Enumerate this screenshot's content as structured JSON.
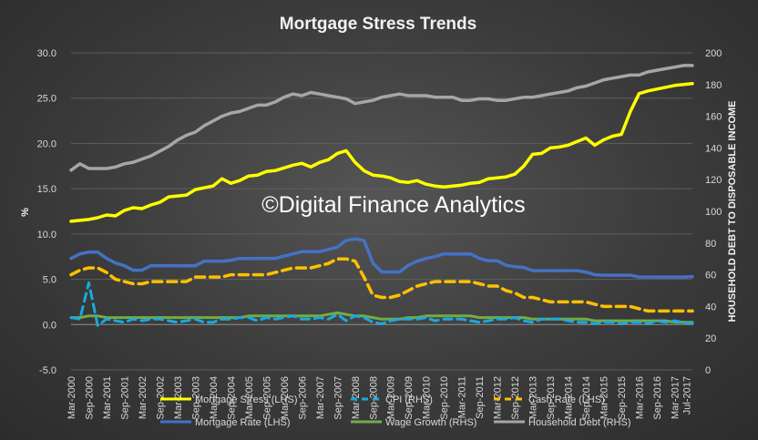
{
  "chart_data": {
    "type": "line",
    "title": "Mortgage Stress Trends",
    "ylabel_left": "%",
    "ylabel_right": "HOUSEHOLD DEBT TO DISPOSABLE INCOME",
    "ylim_left": [
      -5,
      30
    ],
    "ylim_right": [
      0,
      200
    ],
    "yticks_left": [
      "-5.0",
      "0.0",
      "5.0",
      "10.0",
      "15.0",
      "20.0",
      "25.0",
      "30.0"
    ],
    "yticks_right": [
      "0",
      "20",
      "40",
      "60",
      "80",
      "100",
      "120",
      "140",
      "160",
      "180",
      "200"
    ],
    "grid": true,
    "legend_position": "bottom",
    "watermark": "©Digital Finance Analytics",
    "x_tick_labels": [
      "Mar-2000",
      "Sep-2000",
      "Mar-2001",
      "Sep-2001",
      "Mar-2002",
      "Sep-2002",
      "Mar-2003",
      "Sep-2003",
      "Mar-2004",
      "Sep-2004",
      "Mar-2005",
      "Sep-2005",
      "Mar-2006",
      "Sep-2006",
      "Mar-2007",
      "Sep-2007",
      "Mar-2008",
      "Sep-2008",
      "Mar-2009",
      "Sep-2009",
      "Mar-2010",
      "Sep-2010",
      "Mar-2011",
      "Sep-2011",
      "Mar-2012",
      "Sep-2012",
      "Mar-2013",
      "Sep-2013",
      "Mar-2014",
      "Sep-2014",
      "Mar-2015",
      "Sep-2015",
      "Mar-2016",
      "Sep-2016",
      "Mar-2017",
      "Jul-2017"
    ],
    "x_tick_pos": [
      0,
      2,
      4,
      6,
      8,
      10,
      12,
      14,
      16,
      18,
      20,
      22,
      24,
      26,
      28,
      30,
      32,
      34,
      36,
      38,
      40,
      42,
      44,
      46,
      48,
      50,
      52,
      54,
      56,
      58,
      60,
      62,
      64,
      66,
      68,
      69.33
    ],
    "x_range": [
      0,
      70
    ],
    "series": [
      {
        "name": "Mortgage Stress (LHS)",
        "axis": "left",
        "color": "#ffff00",
        "dash": "",
        "width": 3.5,
        "x": [
          0,
          2,
          3,
          4,
          5,
          6,
          7,
          8,
          9,
          10,
          11,
          12,
          13,
          14,
          15,
          16,
          17,
          18,
          19,
          20,
          21,
          22,
          23,
          24,
          25,
          26,
          27,
          28,
          29,
          30,
          31,
          32,
          33,
          34,
          35,
          36,
          37,
          38,
          39,
          40,
          41,
          42,
          43,
          44,
          45,
          46,
          47,
          48,
          49,
          50,
          51,
          52,
          53,
          54,
          55,
          56,
          57,
          58,
          59,
          60,
          61,
          62,
          63,
          64,
          65,
          66,
          67,
          68,
          69,
          70
        ],
        "values": [
          11.4,
          11.6,
          11.8,
          12.1,
          12.0,
          12.6,
          12.9,
          12.8,
          13.2,
          13.5,
          14.1,
          14.2,
          14.3,
          14.9,
          15.1,
          15.3,
          16.1,
          15.6,
          15.9,
          16.4,
          16.5,
          16.9,
          17.0,
          17.3,
          17.6,
          17.8,
          17.4,
          17.9,
          18.2,
          18.9,
          19.2,
          17.9,
          17.0,
          16.5,
          16.4,
          16.2,
          15.8,
          15.7,
          15.9,
          15.5,
          15.3,
          15.2,
          15.3,
          15.4,
          15.6,
          15.7,
          16.1,
          16.2,
          16.3,
          16.6,
          17.5,
          18.8,
          18.9,
          19.5,
          19.6,
          19.8,
          20.2,
          20.6,
          19.8,
          20.4,
          20.8,
          21.0,
          23.5,
          25.5,
          25.8,
          26.0,
          26.2,
          26.4,
          26.5,
          26.6
        ]
      },
      {
        "name": "CPI (RHS)",
        "axis": "right",
        "color": "#1aa9e0",
        "dash": "9,6",
        "width": 3,
        "x": [
          0,
          1,
          2,
          3,
          4,
          5,
          6,
          7,
          8,
          9,
          10,
          11,
          12,
          13,
          14,
          15,
          16,
          17,
          18,
          19,
          20,
          21,
          22,
          23,
          24,
          25,
          26,
          27,
          28,
          29,
          30,
          31,
          32,
          33,
          34,
          35,
          36,
          37,
          38,
          39,
          40,
          41,
          42,
          43,
          44,
          45,
          46,
          47,
          48,
          49,
          50,
          51,
          52,
          53,
          54,
          55,
          56,
          57,
          58,
          59,
          60,
          61,
          62,
          63,
          64,
          65,
          66,
          67,
          68,
          69,
          70
        ],
        "values": [
          33,
          32,
          55,
          28,
          32,
          31,
          30,
          32,
          31,
          32,
          32,
          31,
          30,
          31,
          32,
          30,
          30,
          32,
          32,
          33,
          33,
          31,
          33,
          32,
          33,
          34,
          32,
          32,
          33,
          32,
          35,
          31,
          34,
          33,
          30,
          29,
          31,
          32,
          32,
          32,
          33,
          31,
          32,
          32,
          32,
          31,
          30,
          31,
          32,
          32,
          33,
          31,
          30,
          32,
          32,
          32,
          31,
          30,
          30,
          29,
          30,
          30,
          29,
          30,
          30,
          29,
          31,
          30,
          31,
          30,
          29
        ]
      },
      {
        "name": "Cash Rate (LHS)",
        "axis": "left",
        "color": "#ffc000",
        "dash": "10,6",
        "width": 3.5,
        "x": [
          0,
          1,
          2,
          3,
          4,
          5,
          6,
          7,
          8,
          9,
          10,
          11,
          12,
          13,
          14,
          15,
          16,
          17,
          18,
          19,
          20,
          21,
          22,
          23,
          24,
          25,
          26,
          27,
          28,
          29,
          30,
          31,
          32,
          33,
          34,
          35,
          36,
          37,
          38,
          39,
          40,
          41,
          42,
          43,
          44,
          45,
          46,
          47,
          48,
          49,
          50,
          51,
          52,
          53,
          54,
          55,
          56,
          57,
          58,
          59,
          60,
          61,
          62,
          63,
          64,
          65,
          66,
          67,
          68,
          69,
          70
        ],
        "values": [
          5.5,
          6.0,
          6.25,
          6.25,
          5.75,
          5.0,
          4.75,
          4.5,
          4.5,
          4.75,
          4.75,
          4.75,
          4.75,
          4.75,
          5.25,
          5.25,
          5.25,
          5.25,
          5.5,
          5.5,
          5.5,
          5.5,
          5.5,
          5.75,
          6.0,
          6.25,
          6.25,
          6.25,
          6.5,
          6.75,
          7.25,
          7.25,
          7.0,
          5.25,
          3.25,
          3.0,
          3.0,
          3.25,
          3.75,
          4.25,
          4.5,
          4.75,
          4.75,
          4.75,
          4.75,
          4.75,
          4.5,
          4.25,
          4.25,
          3.75,
          3.5,
          3.0,
          3.0,
          2.75,
          2.5,
          2.5,
          2.5,
          2.5,
          2.5,
          2.25,
          2.0,
          2.0,
          2.0,
          2.0,
          1.75,
          1.5,
          1.5,
          1.5,
          1.5,
          1.5,
          1.5
        ]
      },
      {
        "name": "Mortgage Rate (LHS)",
        "axis": "left",
        "color": "#4472c4",
        "dash": "",
        "width": 3.5,
        "x": [
          0,
          1,
          2,
          3,
          4,
          5,
          6,
          7,
          8,
          9,
          10,
          11,
          12,
          13,
          14,
          15,
          16,
          17,
          18,
          19,
          20,
          21,
          22,
          23,
          24,
          25,
          26,
          27,
          28,
          29,
          30,
          31,
          32,
          33,
          34,
          35,
          36,
          37,
          38,
          39,
          40,
          41,
          42,
          43,
          44,
          45,
          46,
          47,
          48,
          49,
          50,
          51,
          52,
          53,
          54,
          55,
          56,
          57,
          58,
          59,
          60,
          61,
          62,
          63,
          64,
          65,
          66,
          67,
          68,
          69,
          70
        ],
        "values": [
          7.3,
          7.8,
          8.0,
          8.0,
          7.3,
          6.8,
          6.5,
          6.0,
          6.0,
          6.5,
          6.5,
          6.5,
          6.5,
          6.5,
          6.5,
          7.0,
          7.0,
          7.0,
          7.1,
          7.3,
          7.3,
          7.3,
          7.3,
          7.3,
          7.55,
          7.8,
          8.05,
          8.05,
          8.05,
          8.3,
          8.55,
          9.3,
          9.45,
          9.3,
          6.8,
          5.8,
          5.8,
          5.8,
          6.55,
          7.0,
          7.3,
          7.5,
          7.8,
          7.8,
          7.8,
          7.8,
          7.3,
          7.05,
          7.05,
          6.55,
          6.4,
          6.3,
          5.95,
          5.95,
          5.95,
          5.95,
          5.95,
          5.95,
          5.8,
          5.5,
          5.45,
          5.45,
          5.45,
          5.45,
          5.25,
          5.25,
          5.25,
          5.25,
          5.25,
          5.25,
          5.3
        ]
      },
      {
        "name": "Wage Growth (RHS)",
        "axis": "right",
        "color": "#70ad47",
        "dash": "",
        "width": 3,
        "x": [
          0,
          1,
          2,
          3,
          4,
          5,
          6,
          7,
          8,
          9,
          10,
          11,
          12,
          13,
          14,
          15,
          16,
          17,
          18,
          19,
          20,
          21,
          22,
          23,
          24,
          25,
          26,
          27,
          28,
          29,
          30,
          31,
          32,
          33,
          34,
          35,
          36,
          37,
          38,
          39,
          40,
          41,
          42,
          43,
          44,
          45,
          46,
          47,
          48,
          49,
          50,
          51,
          52,
          53,
          54,
          55,
          56,
          57,
          58,
          59,
          60,
          61,
          62,
          63,
          64,
          65,
          66,
          67,
          68,
          69,
          70
        ],
        "values": [
          33,
          33,
          34,
          34,
          33,
          33,
          33,
          33,
          33,
          33,
          33,
          33,
          33,
          33,
          33,
          33,
          33,
          33,
          33,
          33,
          34,
          34,
          34,
          34,
          34,
          34,
          34,
          34,
          34,
          35,
          36,
          35,
          34,
          34,
          33,
          32,
          32,
          32,
          33,
          33,
          34,
          34,
          34,
          34,
          34,
          34,
          33,
          33,
          33,
          33,
          33,
          33,
          32,
          32,
          32,
          32,
          32,
          32,
          32,
          31,
          31,
          31,
          31,
          31,
          31,
          31,
          31,
          31,
          30,
          30,
          30
        ]
      },
      {
        "name": "Household Debt (RHS)",
        "axis": "right",
        "color": "#a6a6a6",
        "dash": "",
        "width": 3.5,
        "x": [
          0,
          1,
          2,
          3,
          4,
          5,
          6,
          7,
          8,
          9,
          10,
          11,
          12,
          13,
          14,
          15,
          16,
          17,
          18,
          19,
          20,
          21,
          22,
          23,
          24,
          25,
          26,
          27,
          28,
          29,
          30,
          31,
          32,
          33,
          34,
          35,
          36,
          37,
          38,
          39,
          40,
          41,
          42,
          43,
          44,
          45,
          46,
          47,
          48,
          49,
          50,
          51,
          52,
          53,
          54,
          55,
          56,
          57,
          58,
          59,
          60,
          61,
          62,
          63,
          64,
          65,
          66,
          67,
          68,
          69,
          70
        ],
        "values": [
          126,
          130,
          127,
          127,
          127,
          128,
          130,
          131,
          133,
          135,
          138,
          141,
          145,
          148,
          150,
          154,
          157,
          160,
          162,
          163,
          165,
          167,
          167,
          169,
          172,
          174,
          173,
          175,
          174,
          173,
          172,
          171,
          168,
          169,
          170,
          172,
          173,
          174,
          173,
          173,
          173,
          172,
          172,
          172,
          170,
          170,
          171,
          171,
          170,
          170,
          171,
          172,
          172,
          173,
          174,
          175,
          176,
          178,
          179,
          181,
          183,
          184,
          185,
          186,
          186,
          188,
          189,
          190,
          191,
          192,
          192
        ]
      }
    ]
  }
}
